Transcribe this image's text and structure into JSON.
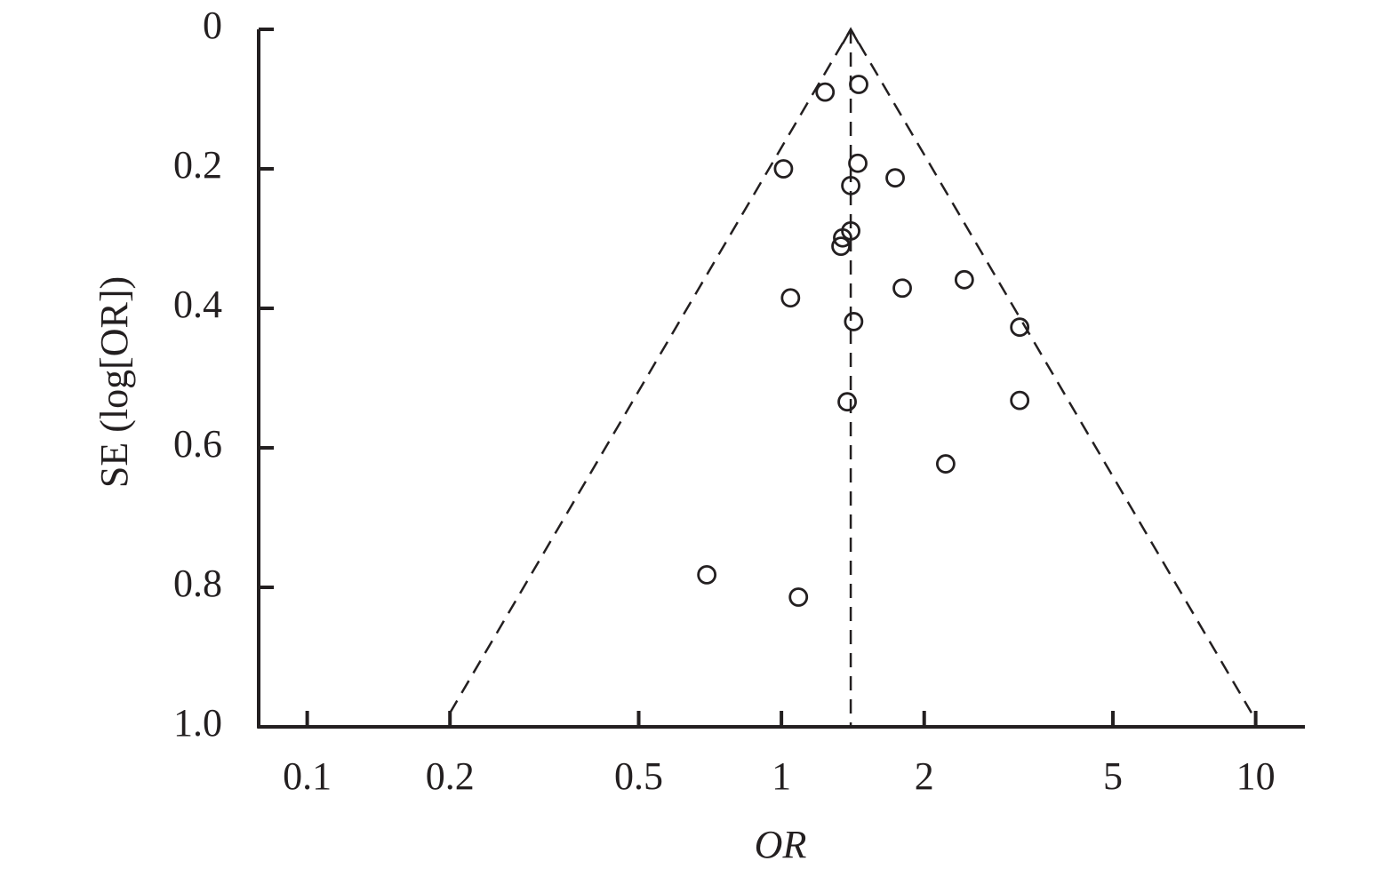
{
  "chart_data": {
    "type": "scatter",
    "x_label": "OR",
    "y_label": "SE (log[OR])",
    "x_log": true,
    "y_inverted": true,
    "xlim": [
      0.079,
      12.7
    ],
    "ylim": [
      0,
      1
    ],
    "xticks": [
      0.1,
      0.2,
      0.5,
      1,
      2,
      5,
      10
    ],
    "yticks": [
      0,
      0.2,
      0.4,
      0.6,
      0.8,
      {
        "value": 1,
        "label": "1.0"
      }
    ],
    "color": "#231f20",
    "series": [
      {
        "x": [
          1.236,
          1.455,
          1.01,
          1.449,
          1.737,
          1.4,
          1.4,
          1.346,
          1.335,
          1.045,
          1.798,
          2.43,
          1.42,
          3.18,
          1.376,
          3.18,
          2.22,
          0.696,
          1.086
        ],
        "values": [
          0.09,
          0.079,
          0.2,
          0.192,
          0.213,
          0.224,
          0.289,
          0.299,
          0.311,
          0.385,
          0.371,
          0.359,
          0.419,
          0.427,
          0.534,
          0.532,
          0.623,
          0.782,
          0.814
        ]
      }
    ],
    "funnel": {
      "x": [
        0.2,
        1.4,
        9.8
      ],
      "values": [
        0.98,
        0,
        0.98
      ]
    },
    "center_line": {
      "x": [
        1.4,
        1.4
      ],
      "values": [
        0,
        1
      ]
    }
  }
}
